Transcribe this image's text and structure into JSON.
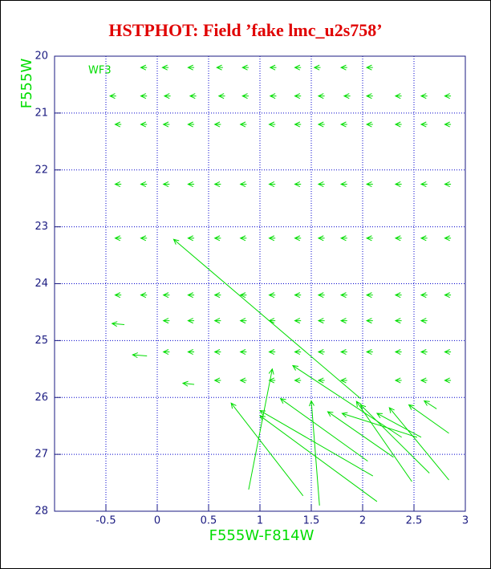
{
  "chart_data": {
    "type": "quiver",
    "title": "HSTPHOT: Field ’fake lmc_u2s758’",
    "annotation": "WF3",
    "xlabel": "F555W-F814W",
    "ylabel": "F555W",
    "xlim": [
      -1,
      3
    ],
    "ylim": [
      28,
      20
    ],
    "xticks": [
      -0.5,
      0,
      0.5,
      1,
      1.5,
      2,
      2.5,
      3
    ],
    "yticks": [
      20,
      21,
      22,
      23,
      24,
      25,
      26,
      27,
      28
    ],
    "grid": true,
    "color": "#00dd00",
    "x": [
      -0.1,
      0.11,
      0.36,
      0.64,
      0.89,
      1.16,
      1.4,
      1.59,
      1.85,
      2.1,
      -0.4,
      -0.1,
      0.13,
      0.38,
      0.66,
      0.89,
      1.16,
      1.4,
      1.63,
      1.88,
      2.1,
      2.38,
      2.63,
      2.86,
      -0.35,
      -0.1,
      0.12,
      0.36,
      0.62,
      0.87,
      1.15,
      1.4,
      1.63,
      1.85,
      2.1,
      2.38,
      2.63,
      2.86,
      -0.35,
      -0.1,
      0.12,
      0.36,
      0.62,
      0.87,
      1.15,
      1.4,
      1.63,
      1.85,
      2.1,
      2.38,
      2.63,
      2.86,
      -0.35,
      -0.1,
      0.36,
      0.62,
      0.87,
      1.15,
      1.4,
      1.63,
      1.85,
      2.1,
      2.38,
      2.63,
      2.86,
      -0.35,
      -0.1,
      0.12,
      0.36,
      0.62,
      0.87,
      1.15,
      1.4,
      1.63,
      1.85,
      2.1,
      2.38,
      2.63,
      2.86,
      0.12,
      0.36,
      0.62,
      0.87,
      1.15,
      1.4,
      1.63,
      1.85,
      2.1,
      2.38,
      2.63,
      0.12,
      0.36,
      0.62,
      0.87,
      1.15,
      1.4,
      1.63,
      1.85,
      2.1,
      2.38,
      2.63,
      2.86,
      0.62,
      0.87,
      1.15,
      1.4,
      1.63,
      1.85,
      2.38,
      2.63,
      2.86,
      1.98,
      0.89,
      2.38,
      1.58,
      1.42,
      2.1,
      2.14,
      2.05,
      2.3,
      2.53,
      2.48,
      2.65,
      2.57,
      2.84,
      2.84,
      2.72,
      0.36,
      -0.1,
      -0.32
    ],
    "y": [
      20.2,
      20.2,
      20.2,
      20.2,
      20.2,
      20.2,
      20.2,
      20.2,
      20.2,
      20.2,
      20.7,
      20.7,
      20.7,
      20.7,
      20.7,
      20.7,
      20.7,
      20.7,
      20.7,
      20.7,
      20.7,
      20.7,
      20.7,
      20.7,
      21.2,
      21.2,
      21.2,
      21.2,
      21.2,
      21.2,
      21.2,
      21.2,
      21.2,
      21.2,
      21.2,
      21.2,
      21.2,
      21.2,
      22.25,
      22.25,
      22.25,
      22.25,
      22.25,
      22.25,
      22.25,
      22.25,
      22.25,
      22.25,
      22.25,
      22.25,
      22.25,
      22.25,
      23.2,
      23.2,
      23.2,
      23.2,
      23.2,
      23.2,
      23.2,
      23.2,
      23.2,
      23.2,
      23.2,
      23.2,
      23.2,
      24.2,
      24.2,
      24.2,
      24.2,
      24.2,
      24.2,
      24.2,
      24.2,
      24.2,
      24.2,
      24.2,
      24.2,
      24.2,
      24.2,
      24.65,
      24.65,
      24.65,
      24.65,
      24.65,
      24.65,
      24.65,
      24.65,
      24.65,
      24.65,
      24.65,
      25.2,
      25.2,
      25.2,
      25.2,
      25.2,
      25.2,
      25.2,
      25.2,
      25.2,
      25.2,
      25.2,
      25.2,
      25.7,
      25.7,
      25.7,
      25.7,
      25.7,
      25.7,
      25.7,
      25.7,
      25.7,
      26.02,
      27.62,
      26.7,
      27.9,
      27.73,
      27.38,
      27.83,
      27.12,
      27.05,
      26.7,
      27.48,
      27.33,
      26.7,
      27.45,
      26.63,
      26.2,
      25.77,
      25.27,
      24.72
    ],
    "dx": [
      -0.06,
      -0.06,
      -0.06,
      -0.06,
      -0.06,
      -0.06,
      -0.06,
      -0.06,
      -0.06,
      -0.06,
      -0.06,
      -0.06,
      -0.06,
      -0.06,
      -0.06,
      -0.06,
      -0.06,
      -0.06,
      -0.06,
      -0.06,
      -0.06,
      -0.06,
      -0.06,
      -0.06,
      -0.06,
      -0.06,
      -0.06,
      -0.06,
      -0.06,
      -0.06,
      -0.06,
      -0.06,
      -0.06,
      -0.06,
      -0.06,
      -0.06,
      -0.06,
      -0.06,
      -0.06,
      -0.06,
      -0.06,
      -0.06,
      -0.06,
      -0.06,
      -0.06,
      -0.06,
      -0.06,
      -0.06,
      -0.06,
      -0.06,
      -0.06,
      -0.06,
      -0.06,
      -0.06,
      -0.06,
      -0.06,
      -0.06,
      -0.06,
      -0.06,
      -0.06,
      -0.06,
      -0.06,
      -0.06,
      -0.06,
      -0.06,
      -0.06,
      -0.06,
      -0.06,
      -0.06,
      -0.06,
      -0.06,
      -0.06,
      -0.06,
      -0.06,
      -0.06,
      -0.06,
      -0.06,
      -0.06,
      -0.06,
      -0.06,
      -0.06,
      -0.06,
      -0.06,
      -0.06,
      -0.06,
      -0.06,
      -0.06,
      -0.06,
      -0.06,
      -0.06,
      -0.06,
      -0.06,
      -0.06,
      -0.06,
      -0.06,
      -0.06,
      -0.06,
      -0.06,
      -0.06,
      -0.06,
      -0.06,
      -0.06,
      -0.06,
      -0.06,
      -0.06,
      -0.06,
      -0.06,
      -0.06,
      -0.06,
      -0.06,
      -0.06,
      -1.82,
      0.23,
      -1.06,
      -0.08,
      -0.7,
      -1.1,
      -1.14,
      -0.85,
      -0.64,
      -0.73,
      -0.54,
      -0.67,
      -0.43,
      -0.58,
      -0.39,
      -0.12,
      -0.11,
      -0.14,
      -0.12
    ],
    "dy": [
      0,
      0,
      0,
      0,
      0,
      0,
      0,
      0,
      0,
      0,
      0,
      0,
      0,
      0,
      0,
      0,
      0,
      0,
      0,
      0,
      0,
      0,
      0,
      0,
      0,
      0,
      0,
      0,
      0,
      0,
      0,
      0,
      0,
      0,
      0,
      0,
      0,
      0,
      0,
      0,
      0,
      0,
      0,
      0,
      0,
      0,
      0,
      0,
      0,
      0,
      0,
      0,
      0,
      0,
      0,
      0,
      0,
      0,
      0,
      0,
      0,
      0,
      0,
      0,
      0,
      0,
      0,
      0,
      0,
      0,
      0,
      0,
      0,
      0,
      0,
      0,
      0,
      0,
      0,
      0,
      0,
      0,
      0,
      0,
      0,
      0,
      0,
      0,
      0,
      0,
      0,
      0,
      0,
      0,
      0,
      0,
      0,
      0,
      0,
      0,
      0,
      0,
      0,
      0,
      0,
      0,
      0,
      0,
      0,
      0,
      0,
      -2.8,
      -2.12,
      -1.26,
      -1.84,
      -1.63,
      -1.15,
      -1.51,
      -1.1,
      -0.8,
      -0.42,
      -1.41,
      -1.2,
      -0.42,
      -1.27,
      -0.5,
      -0.14,
      -0.02,
      -0.02,
      -0.02
    ]
  }
}
